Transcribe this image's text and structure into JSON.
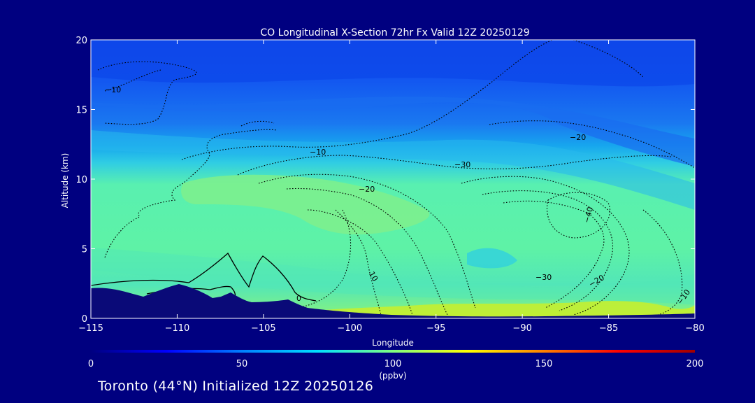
{
  "chart_data": {
    "type": "heatmap",
    "title": "CO Longitudinal X-Section 72hr  Fx Valid 12Z 20250129",
    "xlabel": "Longitude",
    "ylabel": "Altitude (km)",
    "xlim": [
      -115,
      -80
    ],
    "ylim": [
      0,
      20
    ],
    "x_ticks": [
      -115,
      -110,
      -105,
      -100,
      -95,
      -90,
      -85,
      -80
    ],
    "x_tick_labels": [
      "−115",
      "−110",
      "−105",
      "−100",
      "−95",
      "−90",
      "−85",
      "−80"
    ],
    "y_ticks": [
      0,
      5,
      10,
      15,
      20
    ],
    "y_tick_labels": [
      "0",
      "5",
      "10",
      "15",
      "20"
    ],
    "colorbar": {
      "range": [
        0,
        200
      ],
      "ticks": [
        0,
        50,
        100,
        150,
        200
      ],
      "tick_labels": [
        "0",
        "50",
        "100",
        "150",
        "200"
      ],
      "unit_label": "(ppbv)"
    },
    "filled_field_bands": [
      {
        "altitude_km": [
          0,
          1
        ],
        "co_ppbv": 100
      },
      {
        "altitude_km": [
          1,
          6
        ],
        "co_ppbv": 85
      },
      {
        "altitude_km": [
          6,
          10
        ],
        "co_ppbv": 80
      },
      {
        "altitude_km": [
          10,
          12
        ],
        "co_ppbv": 65
      },
      {
        "altitude_km": [
          12,
          15
        ],
        "co_ppbv": 55
      },
      {
        "altitude_km": [
          15,
          20
        ],
        "co_ppbv": 40
      }
    ],
    "contour_labels": [
      {
        "text": "−10",
        "lon": -113.9,
        "alt": 16.6
      },
      {
        "text": "−10",
        "lon": -102.2,
        "alt": 12.0
      },
      {
        "text": "−20",
        "lon": -98.6,
        "alt": 9.3
      },
      {
        "text": "−30",
        "lon": -91.1,
        "alt": 11.0
      },
      {
        "text": "−20",
        "lon": -86.4,
        "alt": 13.1
      },
      {
        "text": "−40",
        "lon": -86.2,
        "alt": 7.4
      },
      {
        "text": "−30",
        "lon": -89.0,
        "alt": 3.0
      },
      {
        "text": "−20",
        "lon": -84.6,
        "alt": 2.6
      },
      {
        "text": "−10",
        "lon": -80.8,
        "alt": 1.6
      },
      {
        "text": "10",
        "lon": -98.6,
        "alt": 2.8
      },
      {
        "text": "0",
        "lon": -103.1,
        "alt": 1.4
      }
    ],
    "colors": {
      "background": "#000080",
      "terrain": "#0a0a78",
      "surface_high": "#ccf02a",
      "ramp": [
        "#000080",
        "#0000ff",
        "#0080ff",
        "#00e0ff",
        "#40ffc0",
        "#a0ff60",
        "#ffff00",
        "#ff8000",
        "#ff0000",
        "#a00000"
      ]
    }
  },
  "footer": {
    "text": "Toronto (44°N) Initialized 12Z 20250126"
  }
}
